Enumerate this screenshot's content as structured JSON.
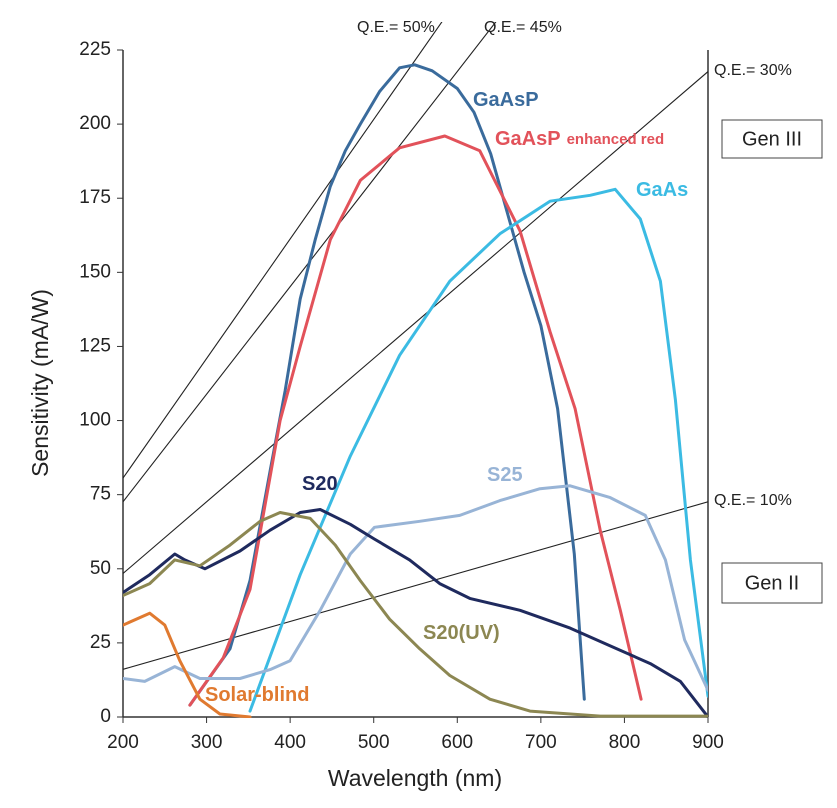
{
  "chart_data": {
    "type": "line",
    "xlabel": "Wavelength (nm)",
    "ylabel": "Sensitivity (mA/W)",
    "xlim": [
      200,
      900
    ],
    "ylim": [
      0,
      225
    ],
    "xticks": [
      200,
      300,
      400,
      500,
      600,
      700,
      800,
      900
    ],
    "yticks": [
      0,
      25,
      50,
      75,
      100,
      125,
      150,
      175,
      200,
      225
    ],
    "series": [
      {
        "name": "GaAsP",
        "color": "#3a6b9c",
        "x": [
          280,
          328,
          352,
          376,
          394,
          412,
          430,
          448,
          466,
          484,
          507,
          531,
          549,
          570,
          600,
          620,
          640,
          660,
          680,
          700,
          720,
          740,
          752
        ],
        "values": [
          4,
          23,
          46,
          83,
          110,
          141,
          161,
          179,
          191,
          200,
          211,
          219,
          220,
          218,
          212,
          204,
          190,
          170,
          150,
          132,
          104,
          55,
          6
        ]
      },
      {
        "name": "GaAsP",
        "name_note": "enhanced red",
        "color": "#e2525a",
        "x": [
          280,
          320,
          352,
          388,
          412,
          448,
          484,
          531,
          585,
          627,
          675,
          711,
          741,
          771,
          795,
          820
        ],
        "values": [
          4,
          20,
          43,
          100,
          125,
          161,
          181,
          192,
          196,
          191,
          164,
          130,
          104,
          63,
          36,
          6
        ]
      },
      {
        "name": "GaAs",
        "color": "#3bbbe3",
        "x": [
          352,
          412,
          472,
          531,
          591,
          651,
          711,
          759,
          789,
          819,
          843,
          861,
          879,
          900
        ],
        "values": [
          2,
          48,
          88,
          122,
          147,
          163,
          174,
          176,
          178,
          168,
          147,
          107,
          53,
          7
        ]
      },
      {
        "name": "S25",
        "color": "#98b4d6",
        "x": [
          200,
          226,
          262,
          292,
          340,
          376,
          400,
          436,
          472,
          501,
          555,
          603,
          651,
          699,
          735,
          783,
          825,
          849,
          872,
          900
        ],
        "values": [
          13,
          12,
          17,
          13,
          13,
          16,
          19,
          36,
          55,
          64,
          66,
          68,
          73,
          77,
          78,
          74,
          68,
          53,
          26,
          9
        ]
      },
      {
        "name": "S20",
        "color": "#1f2a5e",
        "x": [
          200,
          232,
          262,
          274,
          298,
          340,
          376,
          412,
          436,
          472,
          501,
          543,
          579,
          615,
          675,
          735,
          783,
          831,
          867,
          900
        ],
        "values": [
          42,
          48,
          55,
          53,
          50,
          56,
          63,
          69,
          70,
          65,
          60,
          53,
          45,
          40,
          36,
          30,
          24,
          18,
          12,
          0
        ]
      },
      {
        "name": "S20(UV)",
        "color": "#8c8752",
        "x": [
          200,
          232,
          262,
          292,
          328,
          364,
          388,
          424,
          454,
          484,
          519,
          555,
          591,
          639,
          687,
          771,
          900
        ],
        "values": [
          41,
          45,
          53,
          51,
          58,
          66,
          69,
          67,
          58,
          46,
          33,
          23,
          14,
          6,
          2,
          0.3,
          0.3
        ]
      },
      {
        "name": "Solar-blind",
        "color": "#e07a30",
        "x": [
          200,
          232,
          250,
          268,
          292,
          316,
          352
        ],
        "values": [
          31,
          35,
          31,
          19,
          6,
          1,
          0
        ]
      }
    ],
    "reference_lines": [
      {
        "label": "Q.E.= 50%",
        "x": [
          200,
          900
        ],
        "values": [
          80.6,
          362.9
        ]
      },
      {
        "label": "Q.E.= 45%",
        "x": [
          200,
          900
        ],
        "values": [
          72.6,
          326.6
        ]
      },
      {
        "label": "Q.E.= 30%",
        "x": [
          200,
          900
        ],
        "values": [
          48.4,
          217.7
        ]
      },
      {
        "label": "Q.E.= 10%",
        "x": [
          200,
          900
        ],
        "values": [
          16.1,
          72.6
        ]
      }
    ],
    "annotations": [
      "Gen III",
      "Gen II"
    ]
  }
}
